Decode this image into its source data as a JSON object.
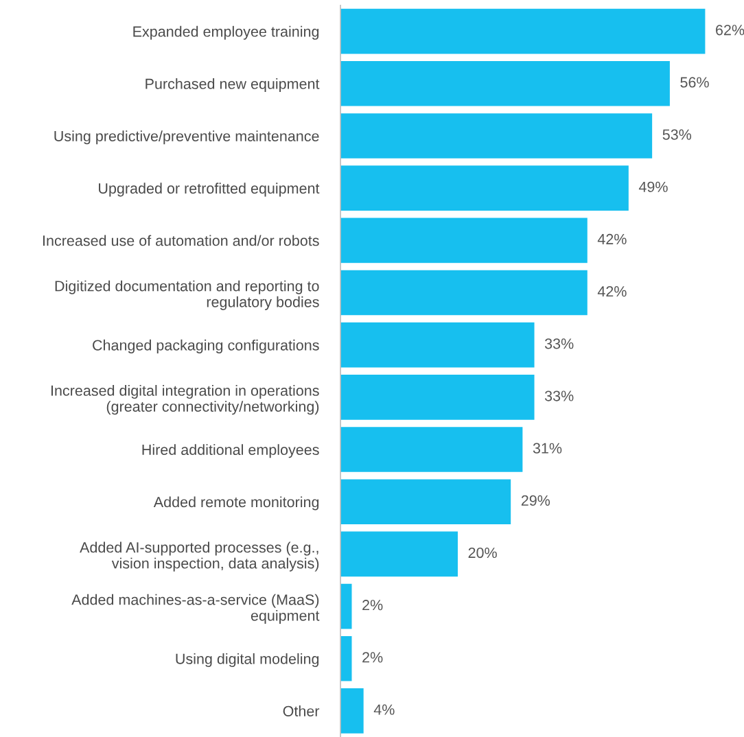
{
  "chart_data": {
    "type": "bar",
    "orientation": "horizontal",
    "categories": [
      "Expanded employee training",
      "Purchased new equipment",
      "Using predictive/preventive maintenance",
      "Upgraded or retrofitted equipment",
      "Increased use of automation and/or robots",
      "Digitized documentation and reporting to\nregulatory bodies",
      "Changed packaging configurations",
      "Increased digital integration in operations\n(greater connectivity/networking)",
      "Hired additional employees",
      "Added remote monitoring",
      "Added AI-supported processes (e.g.,\nvision inspection, data analysis)",
      "Added machines-as-a-service (MaaS)\nequipment",
      "Using digital modeling",
      "Other"
    ],
    "values": [
      62,
      56,
      53,
      49,
      42,
      42,
      33,
      33,
      31,
      29,
      20,
      2,
      2,
      4
    ],
    "value_labels": [
      "62%",
      "56%",
      "53%",
      "49%",
      "42%",
      "42%",
      "33%",
      "33%",
      "31%",
      "29%",
      "20%",
      "2%",
      "2%",
      "4%"
    ],
    "color": "#17bfef",
    "grid": false,
    "legend": false
  }
}
